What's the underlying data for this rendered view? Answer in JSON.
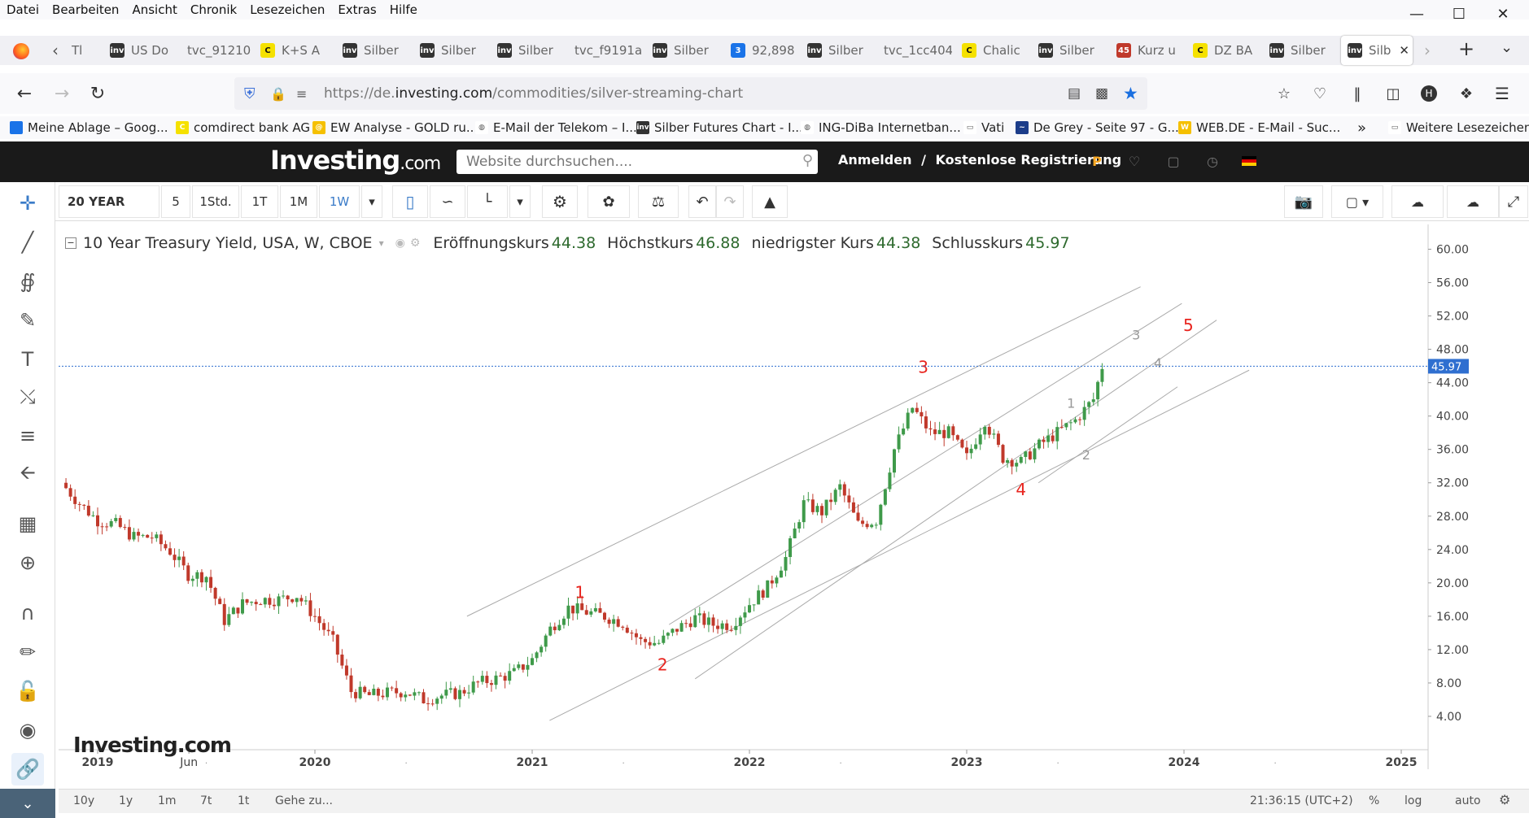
{
  "menu": [
    "Datei",
    "Bearbeiten",
    "Ansicht",
    "Chronik",
    "Lesezeichen",
    "Extras",
    "Hilfe"
  ],
  "tabs": [
    {
      "label": "Tl",
      "fav": "none"
    },
    {
      "label": "US Do",
      "fav": "inv"
    },
    {
      "label": "tvc_91210",
      "fav": "none"
    },
    {
      "label": "K+S A",
      "fav": "c"
    },
    {
      "label": "Silber",
      "fav": "inv"
    },
    {
      "label": "Silber",
      "fav": "inv"
    },
    {
      "label": "Silber",
      "fav": "inv"
    },
    {
      "label": "tvc_f9191a",
      "fav": "none"
    },
    {
      "label": "Silber",
      "fav": "inv"
    },
    {
      "label": "92,898",
      "fav": "n"
    },
    {
      "label": "Silber",
      "fav": "inv"
    },
    {
      "label": "tvc_1cc404",
      "fav": "none"
    },
    {
      "label": "Chalic",
      "fav": "c"
    },
    {
      "label": "Silber",
      "fav": "inv"
    },
    {
      "label": "Kurz u",
      "fav": "k"
    },
    {
      "label": "DZ BA",
      "fav": "c"
    },
    {
      "label": "Silber",
      "fav": "inv"
    },
    {
      "label": "Silb",
      "fav": "inv"
    }
  ],
  "url": {
    "prefix": "https://de.",
    "domain": "investing.com",
    "path": "/commodities/silver-streaming-chart"
  },
  "bookmarks": [
    "Meine Ablage – Goog...",
    "comdirect bank AG",
    "EW Analyse - GOLD ru...",
    "E-Mail der Telekom – I...",
    "Silber Futures Chart - I...",
    "ING-DiBa Internetban...",
    "Vati",
    "De Grey - Seite 97 - G...",
    "WEB.DE - E-Mail - Suc...",
    "Weitere Lesezeichen"
  ],
  "site": {
    "logo_main": "Investing",
    "logo_suffix": ".com",
    "search_placeholder": "Website durchsuchen....",
    "login": "Anmelden",
    "sep": "/",
    "register": "Kostenlose Registrierung"
  },
  "toolbar": {
    "range": "20 YEAR",
    "intervals": [
      "5",
      "1Std.",
      "1T",
      "1M",
      "1W"
    ],
    "selected_interval": "1W"
  },
  "legend": {
    "title": "10 Year Treasury Yield, USA, W, CBOE",
    "open_label": "Eröffnungskurs",
    "open": "44.38",
    "high_label": "Höchstkurs",
    "high": "46.88",
    "low_label": "niedrigster Kurs",
    "low": "44.38",
    "close_label": "Schlusskurs",
    "close": "45.97"
  },
  "watermark": "Investing.com",
  "bottom": {
    "ranges": [
      "10y",
      "1y",
      "1m",
      "7t",
      "1t"
    ],
    "goto": "Gehe zu...",
    "clock": "21:36:15 (UTC+2)",
    "pct": "%",
    "log": "log",
    "auto": "auto"
  },
  "colors": {
    "up": "#3f9a4a",
    "down": "#c0392b",
    "wave_red": "#e8241e",
    "wave_gray": "#999999",
    "accent": "#3a7bc8",
    "last_price": "#2f6fd0"
  },
  "chart_data": {
    "type": "candlestick",
    "title": "10 Year Treasury Yield, USA, W, CBOE",
    "ylim": [
      0,
      62
    ],
    "y_ticks": [
      "60.00",
      "56.00",
      "52.00",
      "48.00",
      "44.00",
      "40.00",
      "36.00",
      "32.00",
      "28.00",
      "24.00",
      "20.00",
      "16.00",
      "12.00",
      "8.00",
      "4.00"
    ],
    "x_ticks": [
      "2019",
      "Jun",
      "2020",
      "2021",
      "2022",
      "2023",
      "2024",
      "2025"
    ],
    "last_price": "45.97",
    "weekly_closes": [
      [
        "2018-11",
        32.0
      ],
      [
        "2018-12",
        29.5
      ],
      [
        "2019-01",
        27.5
      ],
      [
        "2019-02",
        27.0
      ],
      [
        "2019-03",
        25.5
      ],
      [
        "2019-04",
        25.5
      ],
      [
        "2019-05",
        23.8
      ],
      [
        "2019-06",
        21.0
      ],
      [
        "2019-07",
        20.8
      ],
      [
        "2019-08",
        15.5
      ],
      [
        "2019-09",
        17.5
      ],
      [
        "2019-10",
        18.0
      ],
      [
        "2019-11",
        18.0
      ],
      [
        "2019-12",
        18.5
      ],
      [
        "2020-01",
        16.0
      ],
      [
        "2020-02",
        13.0
      ],
      [
        "2020-03",
        7.0
      ],
      [
        "2020-04",
        6.5
      ],
      [
        "2020-05",
        6.8
      ],
      [
        "2020-06",
        7.0
      ],
      [
        "2020-07",
        6.0
      ],
      [
        "2020-08",
        6.5
      ],
      [
        "2020-09",
        6.8
      ],
      [
        "2020-10",
        8.0
      ],
      [
        "2020-11",
        8.5
      ],
      [
        "2020-12",
        9.2
      ],
      [
        "2021-01",
        10.8
      ],
      [
        "2021-02",
        14.5
      ],
      [
        "2021-03",
        17.0
      ],
      [
        "2021-04",
        16.5
      ],
      [
        "2021-05",
        16.0
      ],
      [
        "2021-06",
        15.2
      ],
      [
        "2021-07",
        13.0
      ],
      [
        "2021-08",
        12.8
      ],
      [
        "2021-09",
        14.5
      ],
      [
        "2021-10",
        15.8
      ],
      [
        "2021-11",
        15.0
      ],
      [
        "2021-12",
        15.0
      ],
      [
        "2022-01",
        17.5
      ],
      [
        "2022-02",
        19.5
      ],
      [
        "2022-03",
        23.0
      ],
      [
        "2022-04",
        29.5
      ],
      [
        "2022-05",
        28.5
      ],
      [
        "2022-06",
        31.5
      ],
      [
        "2022-07",
        27.0
      ],
      [
        "2022-08",
        27.5
      ],
      [
        "2022-09",
        36.0
      ],
      [
        "2022-10",
        41.0
      ],
      [
        "2022-11",
        38.0
      ],
      [
        "2022-12",
        38.0
      ],
      [
        "2023-01",
        35.0
      ],
      [
        "2023-02",
        39.5
      ],
      [
        "2023-03",
        35.0
      ],
      [
        "2023-04",
        34.5
      ],
      [
        "2023-05",
        36.5
      ],
      [
        "2023-06",
        38.0
      ],
      [
        "2023-07",
        39.5
      ],
      [
        "2023-08",
        42.0
      ],
      [
        "2023-08-w3",
        45.97
      ]
    ],
    "wave_labels_red": [
      "1",
      "2",
      "3",
      "4",
      "5"
    ],
    "wave_labels_gray": [
      "1",
      "2",
      "3",
      "4"
    ]
  }
}
